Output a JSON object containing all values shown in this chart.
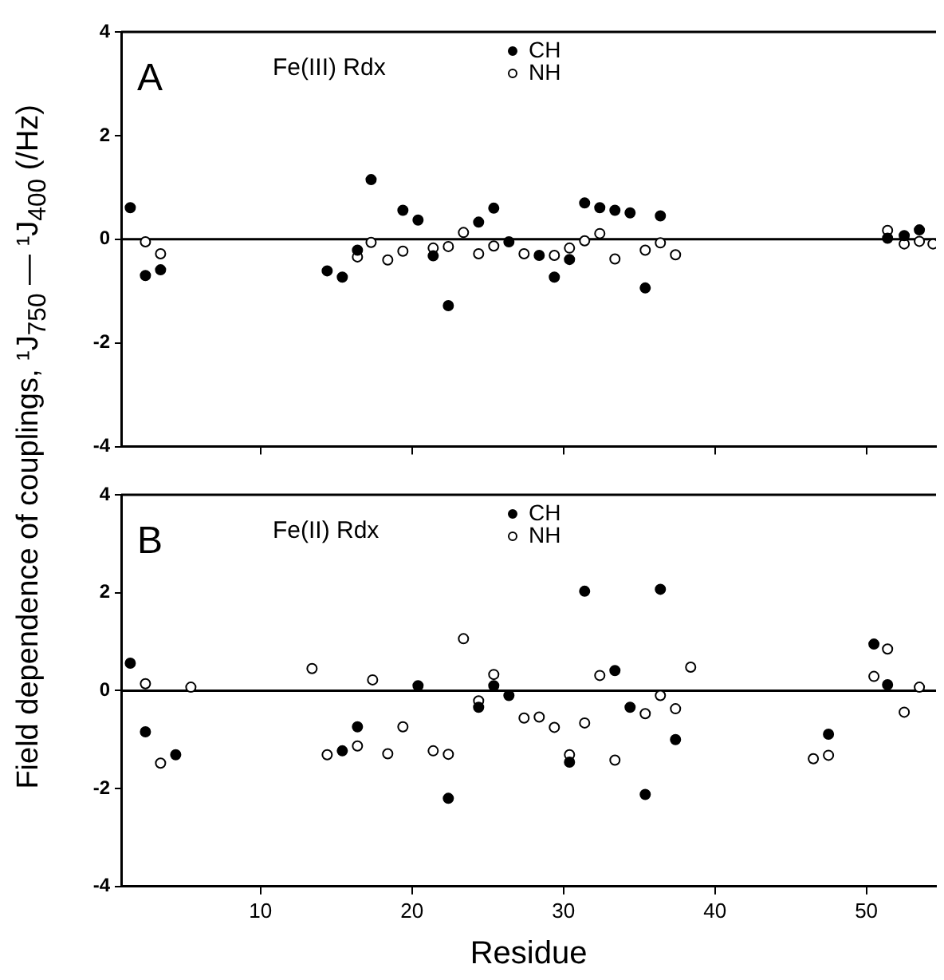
{
  "chart_data": [
    {
      "type": "scatter",
      "annotations": [
        "A",
        "Fe(III) Rdx"
      ],
      "ylabel": "Field dependence of couplings, ¹J$_{750}$ — ¹J$_{400}$ (/Hz)",
      "xlim": [
        0.8,
        54.6
      ],
      "xticks": [
        10,
        20,
        30,
        40,
        50
      ],
      "ylim": [
        -4,
        4
      ],
      "yticks": [
        -4,
        -2,
        0,
        2,
        4
      ],
      "tick_labels": "y",
      "grid": false,
      "legend": "top",
      "marker": "circle",
      "ref_lines": [
        {
          "axis": "y",
          "value": 0,
          "color": "#000000"
        }
      ],
      "series": [
        {
          "name": "CH",
          "color": "#000000",
          "x": [
            1.4,
            2.4,
            3.4,
            14.4,
            15.4,
            16.4,
            17.3,
            19.4,
            20.4,
            21.4,
            22.4,
            24.4,
            25.4,
            26.4,
            28.4,
            29.4,
            30.4,
            31.4,
            32.4,
            33.4,
            34.4,
            35.4,
            36.4,
            51.4,
            52.5,
            53.5
          ],
          "values": [
            0.61,
            -0.7,
            -0.59,
            -0.61,
            -0.73,
            -0.21,
            1.15,
            0.56,
            0.37,
            -0.32,
            -1.28,
            0.33,
            0.6,
            -0.05,
            -0.31,
            -0.73,
            -0.39,
            0.7,
            0.61,
            0.56,
            0.51,
            -0.94,
            0.45,
            0.02,
            0.07,
            0.18
          ]
        },
        {
          "name": "NH",
          "color": "#000000",
          "x": [
            2.4,
            3.4,
            16.4,
            17.3,
            18.4,
            19.4,
            21.4,
            22.4,
            23.4,
            24.4,
            25.4,
            27.4,
            29.4,
            30.4,
            31.4,
            32.4,
            33.4,
            35.4,
            36.4,
            37.4,
            51.4,
            52.5,
            53.5,
            54.4
          ],
          "values": [
            -0.05,
            -0.28,
            -0.34,
            -0.06,
            -0.4,
            -0.23,
            -0.17,
            -0.14,
            0.13,
            -0.28,
            -0.13,
            -0.28,
            -0.31,
            -0.17,
            -0.03,
            0.11,
            -0.38,
            -0.21,
            -0.07,
            -0.3,
            0.17,
            -0.09,
            -0.04,
            -0.09
          ]
        }
      ]
    },
    {
      "type": "scatter",
      "annotations": [
        "B",
        "Fe(II) Rdx"
      ],
      "xlabel": "Residue",
      "xlim": [
        0.8,
        54.6
      ],
      "xticks": [
        10,
        20,
        30,
        40,
        50
      ],
      "ylim": [
        -4,
        4
      ],
      "yticks": [
        -4,
        -2,
        0,
        2,
        4
      ],
      "grid": false,
      "legend": "top",
      "marker": "circle",
      "ref_lines": [
        {
          "axis": "y",
          "value": 0,
          "color": "#000000"
        }
      ],
      "series": [
        {
          "name": "CH",
          "color": "#000000",
          "x": [
            1.4,
            2.4,
            4.4,
            15.4,
            16.4,
            20.4,
            22.4,
            24.4,
            25.4,
            26.4,
            30.4,
            31.4,
            33.4,
            34.4,
            35.4,
            36.4,
            37.4,
            47.5,
            50.5,
            51.4
          ],
          "values": [
            0.56,
            -0.84,
            -1.31,
            -1.23,
            -0.74,
            0.1,
            -2.2,
            -0.34,
            0.1,
            -0.1,
            -1.46,
            2.03,
            0.41,
            -0.34,
            -2.12,
            2.07,
            -1.0,
            -0.89,
            0.95,
            0.12
          ]
        },
        {
          "name": "NH",
          "color": "#000000",
          "x": [
            2.4,
            3.4,
            5.4,
            13.4,
            14.4,
            16.4,
            17.4,
            18.4,
            19.4,
            21.4,
            22.4,
            23.4,
            24.4,
            25.4,
            27.4,
            28.4,
            29.4,
            30.4,
            31.4,
            32.4,
            33.4,
            35.4,
            36.4,
            37.4,
            38.4,
            46.5,
            47.5,
            50.5,
            51.4,
            52.5,
            53.5
          ],
          "values": [
            0.14,
            -1.48,
            0.07,
            0.45,
            -1.31,
            -1.13,
            0.22,
            -1.29,
            -0.74,
            -1.23,
            -1.3,
            1.06,
            -0.21,
            0.33,
            -0.56,
            -0.54,
            -0.75,
            -1.31,
            -0.66,
            0.31,
            -1.42,
            -0.47,
            -0.1,
            -0.37,
            0.48,
            -1.39,
            -1.32,
            0.29,
            0.85,
            -0.44,
            0.07
          ]
        }
      ]
    }
  ]
}
